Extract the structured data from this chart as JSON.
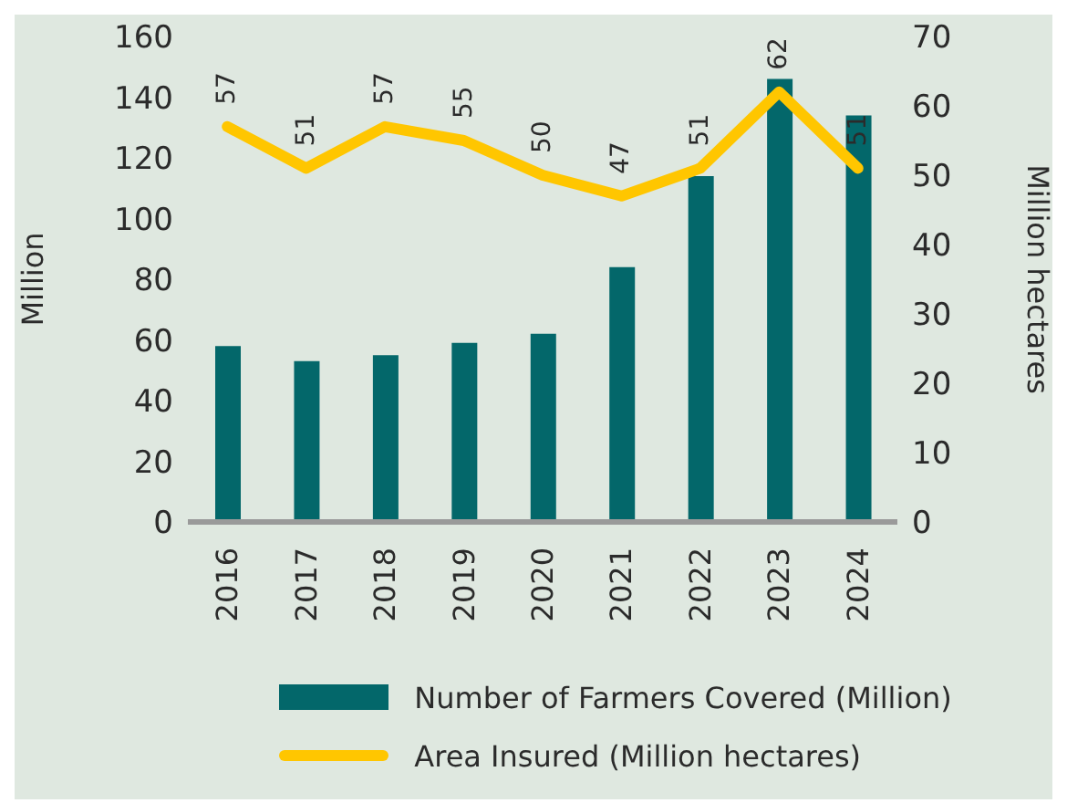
{
  "chart_data": {
    "type": "bar",
    "categories": [
      "2016",
      "2017",
      "2018",
      "2019",
      "2020",
      "2021",
      "2022",
      "2023",
      "2024"
    ],
    "ylabel": "Million",
    "y2label": "Million hectares",
    "series": [
      {
        "name": "Number of Farmers Covered (Million)",
        "color": "#03676a",
        "values": [
          58,
          53,
          55,
          59,
          62,
          84,
          114,
          146,
          134
        ]
      },
      {
        "name": "Area Insured (Million hectares)",
        "type": "line",
        "axis": "y2",
        "color": "#ffc600",
        "values": [
          57,
          51,
          57,
          55,
          50,
          47,
          51,
          62,
          51
        ],
        "value_labels": [
          "57",
          "51",
          "57",
          "55",
          "50",
          "47",
          "51",
          "62",
          "51"
        ]
      }
    ],
    "ylim": [
      0,
      160
    ],
    "yticks": [
      0,
      20,
      40,
      60,
      80,
      100,
      120,
      140,
      160
    ],
    "y2lim": [
      0,
      70
    ],
    "y2ticks": [
      0,
      10,
      20,
      30,
      40,
      50,
      60,
      70
    ],
    "grid": false,
    "legend": "bottom",
    "marker": "none",
    "line_style": "solid"
  }
}
